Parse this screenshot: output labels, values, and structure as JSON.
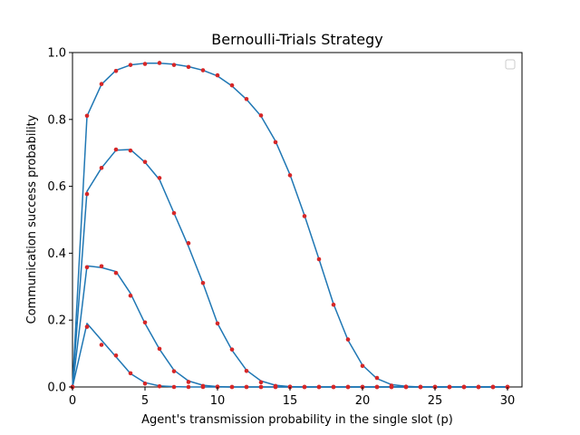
{
  "chart_data": {
    "type": "line",
    "title": "Bernoulli-Trials Strategy",
    "xlabel": "Agent's transmission probability in the single slot (p)",
    "ylabel": "Communication success probability",
    "xlim": [
      0,
      31
    ],
    "ylim": [
      0,
      1.0
    ],
    "xticks": [
      0,
      5,
      10,
      15,
      20,
      25,
      30
    ],
    "yticks": [
      0.0,
      0.2,
      0.4,
      0.6,
      0.8,
      1.0
    ],
    "ytick_labels": [
      "0.0",
      "0.2",
      "0.4",
      "0.6",
      "0.8",
      "1.0"
    ],
    "legend": {
      "placement": "top-right",
      "entries": []
    },
    "grid": false,
    "line_color": "#1f77b4",
    "marker_color": "#d62728",
    "x": [
      0,
      1,
      2,
      3,
      4,
      5,
      6,
      7,
      8,
      9,
      10,
      11,
      12,
      13,
      14,
      15,
      16,
      17,
      18,
      19,
      20,
      21,
      22,
      23,
      24,
      25,
      26,
      27,
      28,
      29,
      30
    ],
    "series": [
      {
        "line": [
          0,
          0.81,
          0.905,
          0.947,
          0.963,
          0.968,
          0.968,
          0.965,
          0.958,
          0.947,
          0.93,
          0.9,
          0.86,
          0.81,
          0.735,
          0.635,
          0.513,
          0.382,
          0.248,
          0.14,
          0.065,
          0.025,
          0.007,
          0.002,
          0,
          0,
          0,
          0,
          0,
          0,
          0
        ],
        "points": [
          0,
          0.811,
          0.906,
          0.945,
          0.963,
          0.966,
          0.969,
          0.963,
          0.957,
          0.947,
          0.932,
          0.902,
          0.861,
          0.812,
          0.732,
          0.633,
          0.511,
          0.382,
          0.246,
          0.142,
          0.063,
          0.027,
          0.004,
          0.001,
          0,
          0,
          0,
          0,
          0,
          0,
          0
        ]
      },
      {
        "line": [
          0,
          0.585,
          0.655,
          0.708,
          0.71,
          0.672,
          0.62,
          0.52,
          0.42,
          0.31,
          0.19,
          0.11,
          0.05,
          0.018,
          0.005,
          0.001,
          0,
          0,
          0,
          0,
          0,
          0,
          0,
          0,
          0,
          0,
          0,
          0,
          0,
          0,
          0
        ],
        "points": [
          0,
          0.577,
          0.655,
          0.71,
          0.707,
          0.673,
          0.625,
          0.52,
          0.43,
          0.311,
          0.19,
          0.112,
          0.048,
          0.014,
          0.003,
          0.001,
          0,
          0,
          0,
          0,
          0,
          0,
          0,
          0,
          0,
          0,
          0,
          0,
          0,
          0,
          0
        ]
      },
      {
        "line": [
          0,
          0.362,
          0.357,
          0.345,
          0.28,
          0.19,
          0.113,
          0.05,
          0.018,
          0.005,
          0.001,
          0,
          0,
          0,
          0,
          0,
          0,
          0,
          0,
          0,
          0,
          0,
          0,
          0,
          0,
          0,
          0,
          0,
          0,
          0,
          0
        ],
        "points": [
          0,
          0.358,
          0.361,
          0.341,
          0.273,
          0.193,
          0.114,
          0.047,
          0.015,
          0.003,
          0.001,
          0,
          0,
          0,
          0,
          0,
          0,
          0,
          0,
          0,
          0,
          0,
          0,
          0,
          0,
          0,
          0,
          0,
          0,
          0,
          0
        ]
      },
      {
        "line": [
          0,
          0.19,
          0.14,
          0.09,
          0.04,
          0.013,
          0.003,
          0.001,
          0,
          0,
          0,
          0,
          0,
          0,
          0,
          0,
          0,
          0,
          0,
          0,
          0,
          0,
          0,
          0,
          0,
          0,
          0,
          0,
          0,
          0,
          0
        ],
        "points": [
          0,
          0.18,
          0.126,
          0.094,
          0.041,
          0.01,
          0.002,
          0,
          0,
          0,
          0,
          0,
          0,
          0,
          0,
          0,
          0,
          0,
          0,
          0,
          0,
          0,
          0,
          0,
          0,
          0,
          0,
          0,
          0,
          0,
          0
        ]
      }
    ]
  }
}
